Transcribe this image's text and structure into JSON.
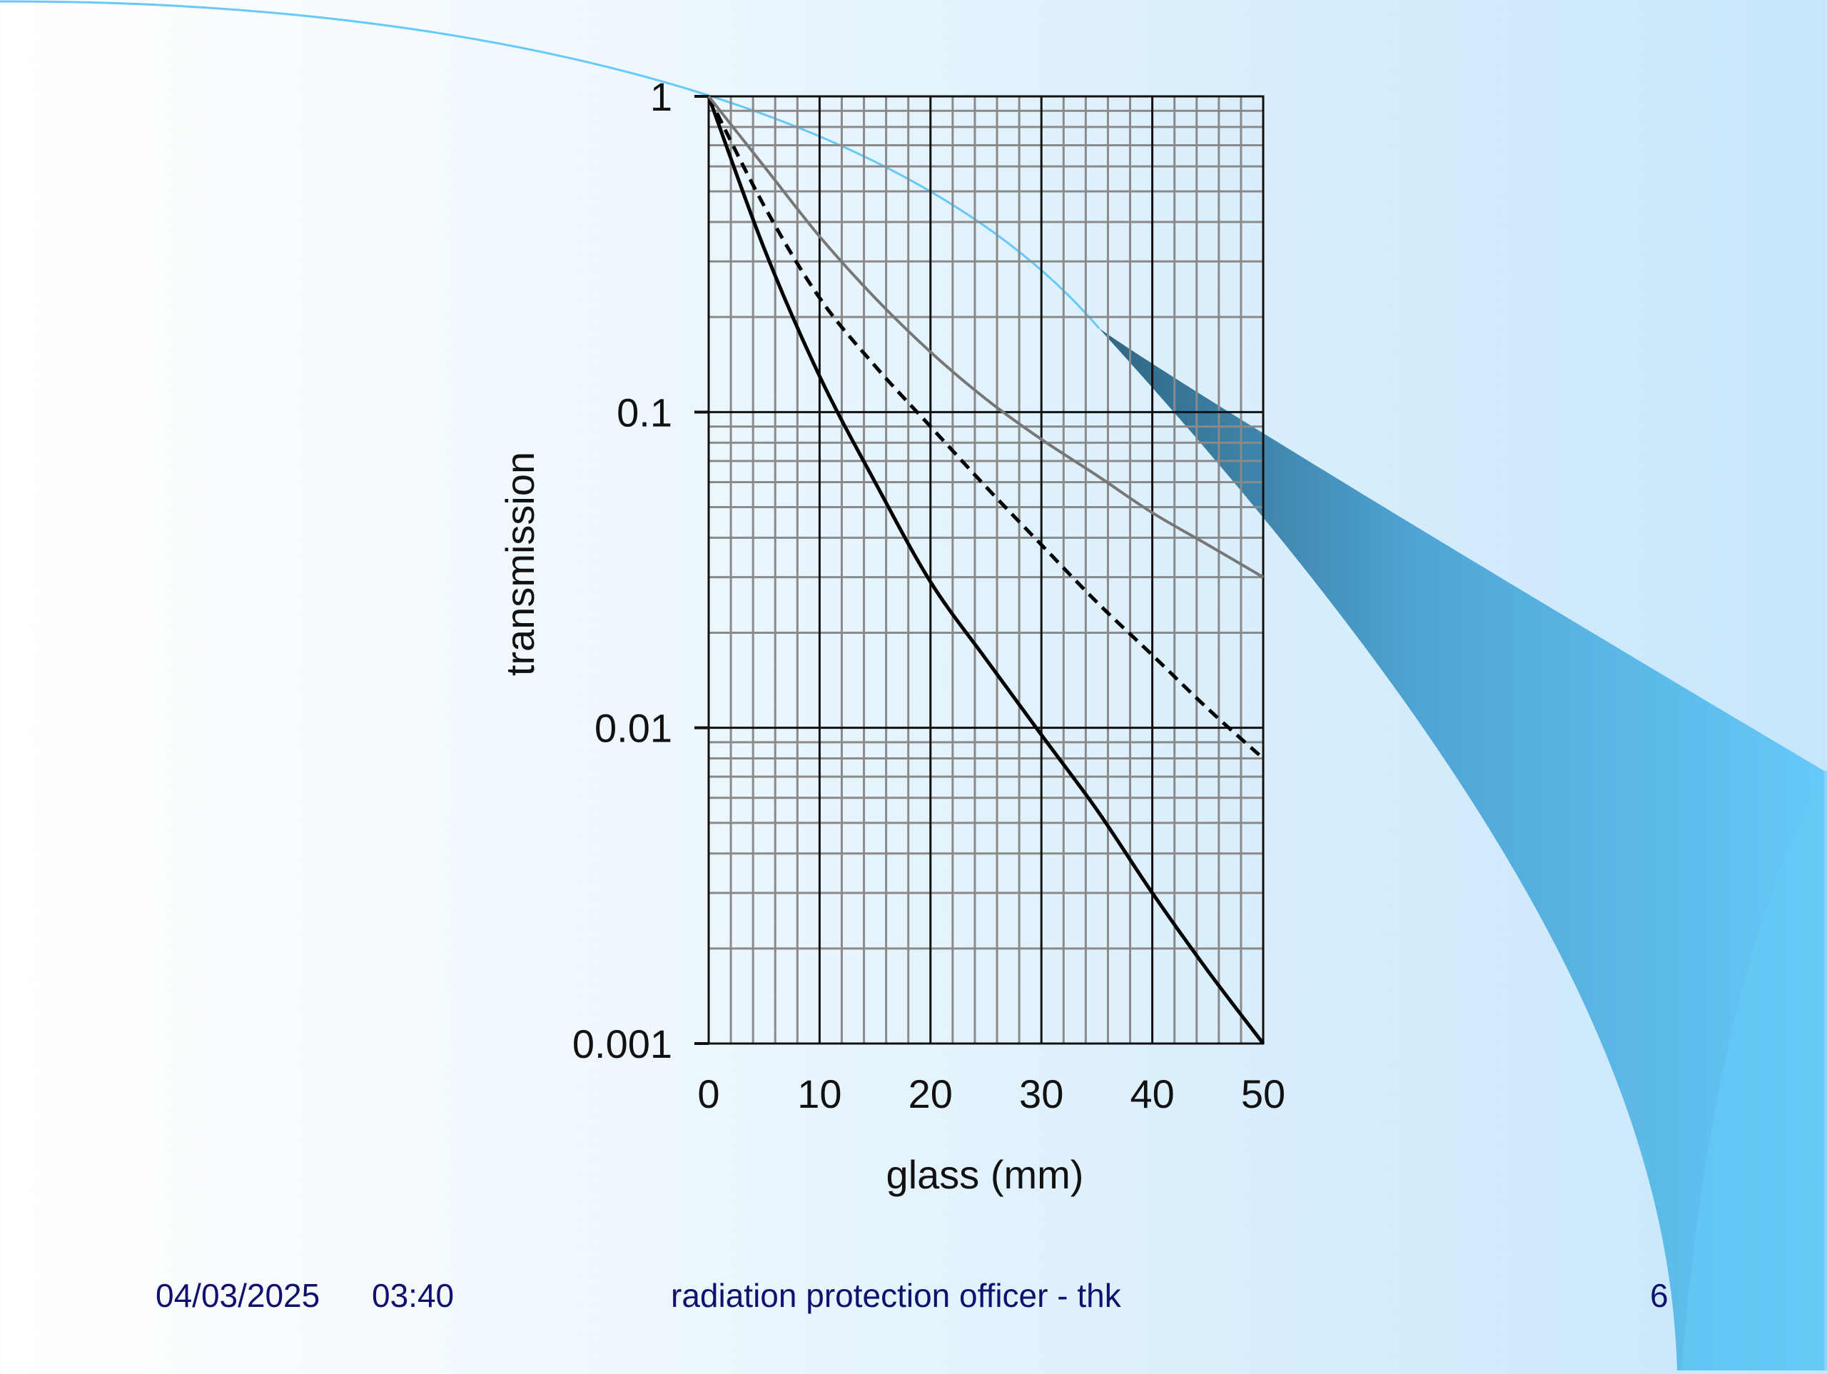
{
  "footer": {
    "date": "04/03/2025",
    "time": "03:40",
    "title": "radiation protection officer - thk",
    "page": "6"
  },
  "colors": {
    "footer_text": "#10106e",
    "decor_light": "#66c9f7",
    "decor_dark": "#2f6582",
    "curve_black": "#000000",
    "curve_grey": "#777777"
  },
  "chart_data": {
    "type": "line",
    "title": "",
    "xlabel": "glass (mm)",
    "ylabel": "transmission",
    "xlim": [
      0,
      50
    ],
    "ylim": [
      0.001,
      1
    ],
    "yscale": "log",
    "grid": true,
    "x_ticks": [
      0,
      10,
      20,
      30,
      40,
      50
    ],
    "x_tick_labels": [
      "0",
      "10",
      "20",
      "30",
      "40",
      "50"
    ],
    "y_ticks": [
      1,
      0.1,
      0.01,
      0.001
    ],
    "y_tick_labels": [
      "1",
      "0.1",
      "0.01",
      "0.001"
    ],
    "series": [
      {
        "style": "solid-black",
        "x": [
          0,
          5,
          10,
          15,
          20,
          25,
          30,
          35,
          40,
          45,
          50
        ],
        "y": [
          1,
          0.33,
          0.13,
          0.06,
          0.029,
          0.0165,
          0.0095,
          0.0055,
          0.003,
          0.0017,
          0.001
        ]
      },
      {
        "style": "dashed-black",
        "x": [
          0,
          5,
          10,
          15,
          20,
          25,
          30,
          35,
          40,
          45,
          50
        ],
        "y": [
          1,
          0.45,
          0.23,
          0.14,
          0.09,
          0.058,
          0.038,
          0.025,
          0.017,
          0.0115,
          0.008
        ]
      },
      {
        "style": "solid-grey",
        "x": [
          0,
          5,
          10,
          15,
          20,
          25,
          30,
          35,
          40,
          45,
          50
        ],
        "y": [
          1,
          0.6,
          0.36,
          0.23,
          0.155,
          0.11,
          0.082,
          0.063,
          0.048,
          0.038,
          0.03
        ]
      }
    ]
  }
}
